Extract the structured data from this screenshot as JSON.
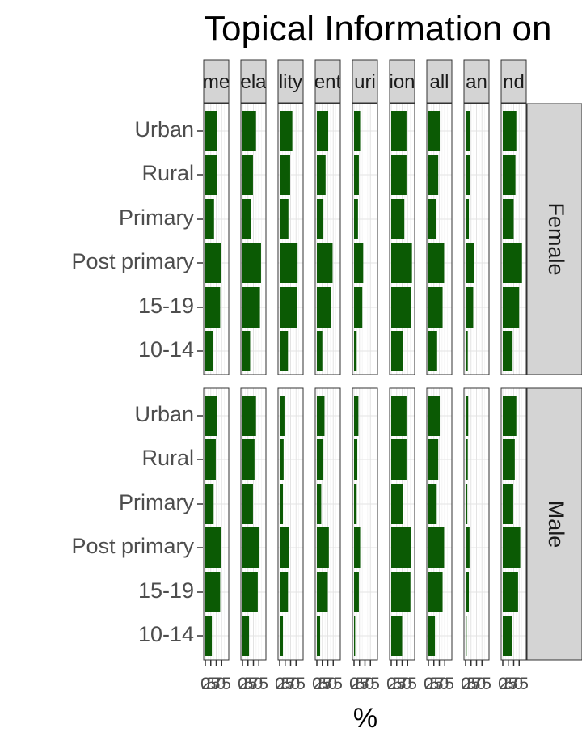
{
  "chart_data": {
    "type": "bar",
    "orientation": "horizontal",
    "title": "Topical Information on",
    "xlabel": "%",
    "ylabel": "",
    "xlim": [
      0,
      100
    ],
    "x_ticks": [
      "0",
      "25",
      "50",
      "75"
    ],
    "grid": true,
    "bar_color": "#0b5a04",
    "strip_fill": "#d4d4d4",
    "panel_border": "#333333",
    "column_strip_labels": [
      "me",
      "ela",
      "lity",
      "ent",
      "uri",
      "ion",
      "all",
      "an",
      "nd"
    ],
    "row_strip_labels": [
      "Female",
      "Male"
    ],
    "categories": [
      "Urban",
      "Rural",
      "Primary",
      "Post primary",
      "15-19",
      "10-14"
    ],
    "panels": [
      {
        "row": "Female",
        "values": [
          [
            55,
            52,
            40,
            72,
            68,
            35
          ],
          [
            62,
            48,
            40,
            85,
            80,
            35
          ],
          [
            58,
            48,
            40,
            82,
            78,
            38
          ],
          [
            52,
            40,
            30,
            72,
            65,
            25
          ],
          [
            28,
            22,
            18,
            42,
            38,
            12
          ],
          [
            70,
            70,
            60,
            95,
            90,
            55
          ],
          [
            52,
            45,
            35,
            72,
            65,
            40
          ],
          [
            22,
            20,
            15,
            38,
            35,
            10
          ],
          [
            62,
            58,
            50,
            88,
            75,
            45
          ]
        ]
      },
      {
        "row": "Male",
        "values": [
          [
            55,
            48,
            38,
            72,
            68,
            30
          ],
          [
            62,
            55,
            48,
            78,
            70,
            30
          ],
          [
            22,
            18,
            15,
            42,
            38,
            15
          ],
          [
            35,
            30,
            20,
            55,
            50,
            15
          ],
          [
            20,
            15,
            12,
            28,
            22,
            5
          ],
          [
            70,
            70,
            55,
            92,
            88,
            50
          ],
          [
            52,
            45,
            38,
            72,
            65,
            30
          ],
          [
            12,
            10,
            8,
            18,
            15,
            5
          ],
          [
            62,
            55,
            48,
            80,
            70,
            42
          ]
        ]
      }
    ]
  }
}
